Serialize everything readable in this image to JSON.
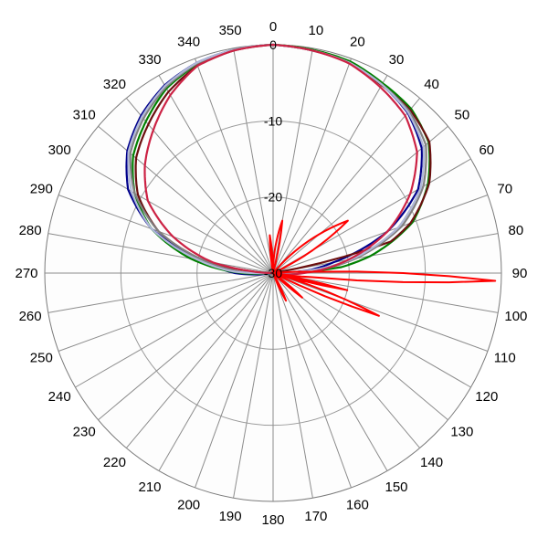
{
  "chart_data": {
    "type": "polar-line",
    "title": "",
    "angle_ticks": [
      "0",
      "10",
      "20",
      "30",
      "40",
      "50",
      "60",
      "70",
      "80",
      "90",
      "100",
      "110",
      "120",
      "130",
      "140",
      "150",
      "160",
      "170",
      "180",
      "190",
      "200",
      "210",
      "220",
      "230",
      "240",
      "250",
      "260",
      "270",
      "280",
      "290",
      "300",
      "310",
      "320",
      "330",
      "340",
      "350"
    ],
    "radial_ticks": [
      "0",
      "-10",
      "-20",
      "-30"
    ],
    "r_range": [
      -30,
      0
    ],
    "grid": true,
    "legend": "none",
    "series": [
      {
        "color": "#00008b",
        "points": [
          [
            0,
            0
          ],
          [
            10,
            -0.3
          ],
          [
            20,
            -0.6
          ],
          [
            30,
            -1.4
          ],
          [
            40,
            -2.5
          ],
          [
            50,
            -4.5
          ],
          [
            60,
            -8
          ],
          [
            70,
            -14
          ],
          [
            80,
            -22
          ],
          [
            85,
            -25
          ],
          [
            90,
            -30
          ],
          [
            180,
            -30
          ],
          [
            260,
            -30
          ],
          [
            265,
            -28
          ],
          [
            270,
            -25
          ],
          [
            280,
            -21
          ],
          [
            290,
            -13
          ],
          [
            300,
            -8
          ],
          [
            310,
            -5
          ],
          [
            320,
            -3
          ],
          [
            330,
            -1.5
          ],
          [
            340,
            -0.6
          ],
          [
            350,
            -0.2
          ]
        ]
      },
      {
        "color": "#008000",
        "points": [
          [
            0,
            0
          ],
          [
            10,
            -0.2
          ],
          [
            20,
            -0.4
          ],
          [
            30,
            -1.2
          ],
          [
            40,
            -1.8
          ],
          [
            50,
            -3.3
          ],
          [
            60,
            -6.5
          ],
          [
            70,
            -10.5
          ],
          [
            80,
            -17
          ],
          [
            85,
            -21
          ],
          [
            90,
            -30
          ],
          [
            180,
            -30
          ],
          [
            265,
            -30
          ],
          [
            270,
            -26
          ],
          [
            280,
            -19
          ],
          [
            290,
            -13
          ],
          [
            300,
            -9
          ],
          [
            310,
            -6
          ],
          [
            320,
            -4
          ],
          [
            330,
            -2
          ],
          [
            340,
            -0.8
          ],
          [
            350,
            -0.2
          ]
        ]
      },
      {
        "color": "#6b0f0f",
        "points": [
          [
            0,
            0
          ],
          [
            10,
            -0.3
          ],
          [
            20,
            -0.6
          ],
          [
            30,
            -1.5
          ],
          [
            40,
            -2
          ],
          [
            50,
            -3.2
          ],
          [
            60,
            -6.3
          ],
          [
            70,
            -10.8
          ],
          [
            75,
            -14
          ],
          [
            80,
            -30
          ],
          [
            180,
            -30
          ],
          [
            270,
            -30
          ],
          [
            275,
            -27
          ],
          [
            280,
            -21
          ],
          [
            290,
            -14
          ],
          [
            300,
            -9.5
          ],
          [
            310,
            -6.5
          ],
          [
            320,
            -4.5
          ],
          [
            330,
            -2.5
          ],
          [
            340,
            -1
          ],
          [
            350,
            -0.3
          ]
        ]
      },
      {
        "color": "#808080",
        "points": [
          [
            0,
            0
          ],
          [
            10,
            -0.3
          ],
          [
            20,
            -0.6
          ],
          [
            30,
            -1.4
          ],
          [
            40,
            -2.2
          ],
          [
            50,
            -3.8
          ],
          [
            60,
            -7.2
          ],
          [
            70,
            -12
          ],
          [
            80,
            -19
          ],
          [
            85,
            -23
          ],
          [
            90,
            -30
          ],
          [
            180,
            -30
          ],
          [
            268,
            -30
          ],
          [
            272,
            -26
          ],
          [
            280,
            -21
          ],
          [
            290,
            -14
          ],
          [
            300,
            -9
          ],
          [
            310,
            -5.5
          ],
          [
            320,
            -3.5
          ],
          [
            330,
            -1.8
          ],
          [
            340,
            -0.7
          ],
          [
            350,
            -0.2
          ]
        ]
      },
      {
        "color": "#b0b8d8",
        "points": [
          [
            0,
            0
          ],
          [
            10,
            -0.3
          ],
          [
            20,
            -0.6
          ],
          [
            30,
            -1.4
          ],
          [
            40,
            -2.4
          ],
          [
            50,
            -4.2
          ],
          [
            60,
            -7.6
          ],
          [
            70,
            -12.5
          ],
          [
            80,
            -19.5
          ],
          [
            85,
            -24
          ],
          [
            90,
            -30
          ],
          [
            180,
            -30
          ],
          [
            268,
            -30
          ],
          [
            272,
            -25
          ],
          [
            280,
            -20
          ],
          [
            290,
            -13
          ],
          [
            300,
            -8.5
          ],
          [
            310,
            -5.2
          ],
          [
            320,
            -3.2
          ],
          [
            330,
            -1.6
          ],
          [
            340,
            -0.6
          ],
          [
            350,
            -0.2
          ]
        ]
      },
      {
        "color": "#cc2244",
        "points": [
          [
            0,
            0
          ],
          [
            10,
            -0.3
          ],
          [
            20,
            -0.7
          ],
          [
            30,
            -1.8
          ],
          [
            40,
            -3
          ],
          [
            50,
            -5.3
          ],
          [
            60,
            -9.2
          ],
          [
            70,
            -14
          ],
          [
            80,
            -20
          ],
          [
            90,
            -26
          ],
          [
            100,
            -30
          ],
          [
            180,
            -30
          ],
          [
            270,
            -30
          ],
          [
            275,
            -27
          ],
          [
            280,
            -22
          ],
          [
            290,
            -16
          ],
          [
            300,
            -11
          ],
          [
            310,
            -8
          ],
          [
            320,
            -5.5
          ],
          [
            330,
            -3
          ],
          [
            340,
            -1
          ],
          [
            350,
            -0.3
          ]
        ]
      },
      {
        "color": "#ff0000",
        "points": [
          [
            0,
            -30
          ],
          [
            10,
            -23
          ],
          [
            15,
            -30
          ],
          [
            40,
            -30
          ],
          [
            55,
            -18
          ],
          [
            65,
            -30
          ],
          [
            85,
            -30
          ],
          [
            88,
            -25
          ],
          [
            92,
            -0.8
          ],
          [
            96,
            -25
          ],
          [
            100,
            -30
          ],
          [
            103,
            -20
          ],
          [
            106,
            -30
          ],
          [
            112,
            -15
          ],
          [
            116,
            -30
          ],
          [
            125,
            -30
          ],
          [
            130,
            -25
          ],
          [
            134,
            -30
          ],
          [
            150,
            -30
          ],
          [
            155,
            -26
          ],
          [
            160,
            -30
          ],
          [
            350,
            -30
          ],
          [
            355,
            -25
          ],
          [
            360,
            -30
          ]
        ]
      }
    ]
  }
}
